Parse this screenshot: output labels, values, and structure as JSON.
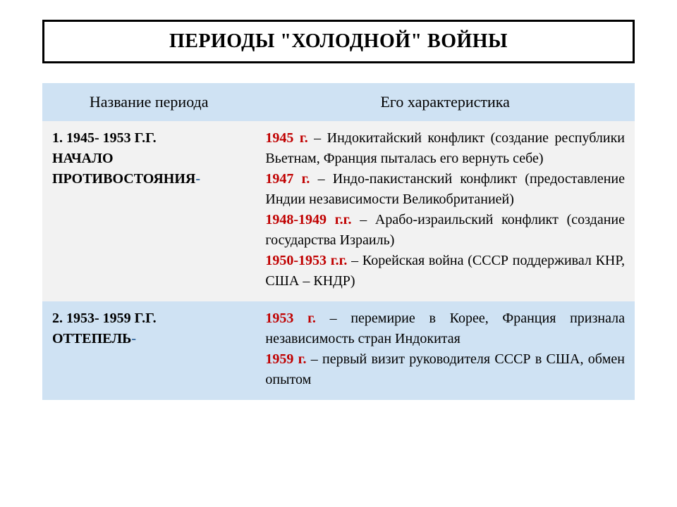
{
  "title": "ПЕРИОДЫ \"ХОЛОДНОЙ\" ВОЙНЫ",
  "table": {
    "headers": {
      "name": "Название периода",
      "desc": "Его характеристика"
    },
    "rows": [
      {
        "name_line1": "1. 1945- 1953 Г.Г.",
        "name_line2": "НАЧАЛО",
        "name_line3": " ПРОТИВОСТОЯНИЯ",
        "name_dash": "-",
        "events": [
          {
            "year": "1945 г.",
            "text": " – Индокитайский конфликт (создание республики Вьетнам, Франция пыталась его вернуть себе)"
          },
          {
            "year": "1947 г.",
            "text": " – Индо-пакистанский конфликт (предоставление Индии независимости Великобританией)"
          },
          {
            "year": "1948-1949 г.г.",
            "text": " – Арабо-израильский конфликт (создание государства Израиль)"
          },
          {
            "year": "1950-1953 г.г.",
            "text": " – Корейская война (СССР поддерживал КНР, США – КНДР)"
          }
        ]
      },
      {
        "name_line1": "2. 1953- 1959 Г.Г.",
        "name_line2": " ОТТЕПЕЛЬ",
        "name_line3": "",
        "name_dash": "-",
        "events": [
          {
            "year": "1953 г.",
            "text": " – перемирие в Корее, Франция признала независимость стран Индокитая"
          },
          {
            "year": "1959 г.",
            "text": " – первый визит руководителя СССР в США, обмен опытом"
          }
        ]
      }
    ]
  },
  "style": {
    "title_border_color": "#000000",
    "title_fontsize": 28,
    "header_bg": "#cfe2f3",
    "row_a_bg": "#f2f2f2",
    "row_b_bg": "#cfe2f3",
    "year_color": "#c00000",
    "dash_color": "#2a6099",
    "body_fontsize": 20,
    "header_fontsize": 22,
    "col_widths_pct": [
      36,
      64
    ]
  }
}
